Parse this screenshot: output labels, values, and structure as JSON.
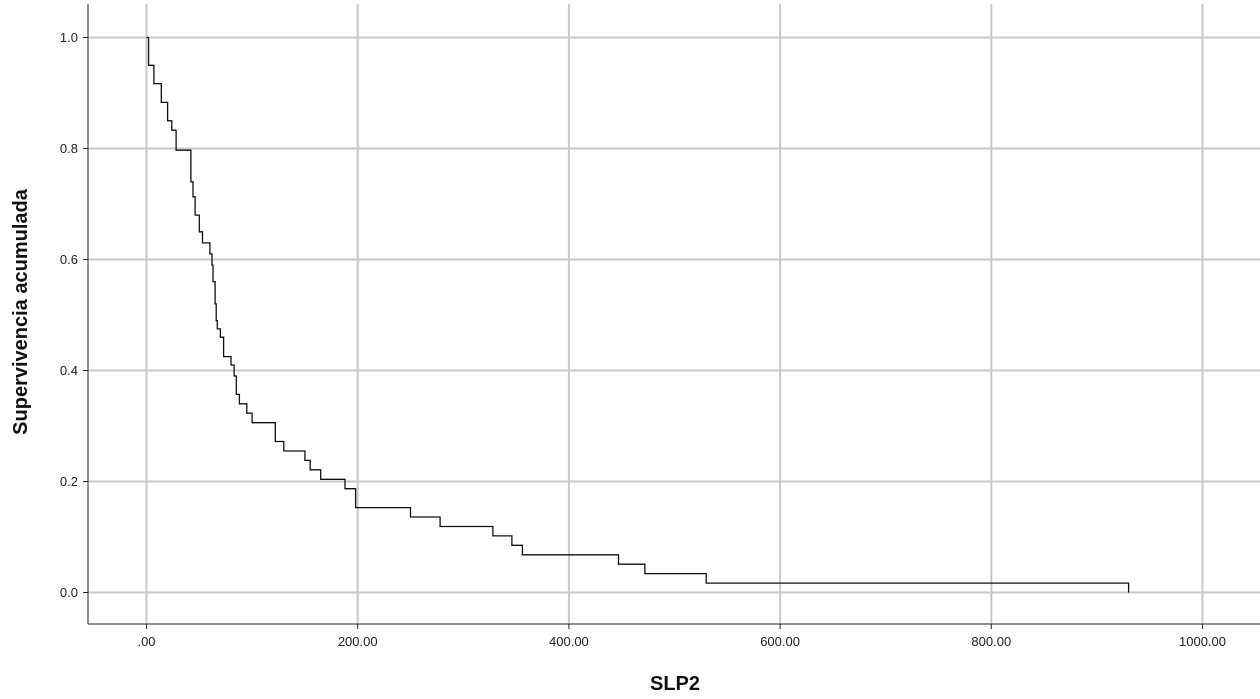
{
  "chart_data": {
    "type": "line",
    "subtype": "kaplan-meier-step",
    "xlabel": "SLP2",
    "ylabel": "Supervivencia acumulada",
    "xlim": [
      -55,
      1060
    ],
    "ylim": [
      -0.06,
      1.06
    ],
    "x_ticks": [
      0,
      200,
      400,
      600,
      800,
      1000
    ],
    "x_tick_labels": [
      ".00",
      "200.00",
      "400.00",
      "600.00",
      "800.00",
      "1000.00"
    ],
    "y_ticks": [
      0.0,
      0.2,
      0.4,
      0.6,
      0.8,
      1.0
    ],
    "y_tick_labels": [
      "0.0",
      "0.2",
      "0.4",
      "0.6",
      "0.8",
      "1.0"
    ],
    "grid": true,
    "colors": {
      "curve": "#111111",
      "grid": "#c9c9c9",
      "background": "#ffffff"
    },
    "series": [
      {
        "steps": [
          [
            0,
            1.0
          ],
          [
            2,
            0.95
          ],
          [
            7,
            0.917
          ],
          [
            14,
            0.883
          ],
          [
            20,
            0.85
          ],
          [
            24,
            0.833
          ],
          [
            28,
            0.797
          ],
          [
            42,
            0.74
          ],
          [
            44,
            0.713
          ],
          [
            46,
            0.68
          ],
          [
            50,
            0.65
          ],
          [
            53,
            0.63
          ],
          [
            60,
            0.61
          ],
          [
            62,
            0.59
          ],
          [
            63,
            0.56
          ],
          [
            65,
            0.52
          ],
          [
            66,
            0.49
          ],
          [
            67,
            0.475
          ],
          [
            70,
            0.46
          ],
          [
            73,
            0.425
          ],
          [
            80,
            0.41
          ],
          [
            83,
            0.39
          ],
          [
            85,
            0.357
          ],
          [
            88,
            0.34
          ],
          [
            95,
            0.323
          ],
          [
            100,
            0.306
          ],
          [
            122,
            0.272
          ],
          [
            130,
            0.255
          ],
          [
            150,
            0.238
          ],
          [
            155,
            0.221
          ],
          [
            165,
            0.204
          ],
          [
            188,
            0.187
          ],
          [
            198,
            0.153
          ],
          [
            250,
            0.136
          ],
          [
            278,
            0.119
          ],
          [
            328,
            0.102
          ],
          [
            346,
            0.085
          ],
          [
            356,
            0.068
          ],
          [
            447,
            0.051
          ],
          [
            472,
            0.034
          ],
          [
            530,
            0.017
          ],
          [
            930,
            0.0
          ]
        ]
      }
    ]
  }
}
